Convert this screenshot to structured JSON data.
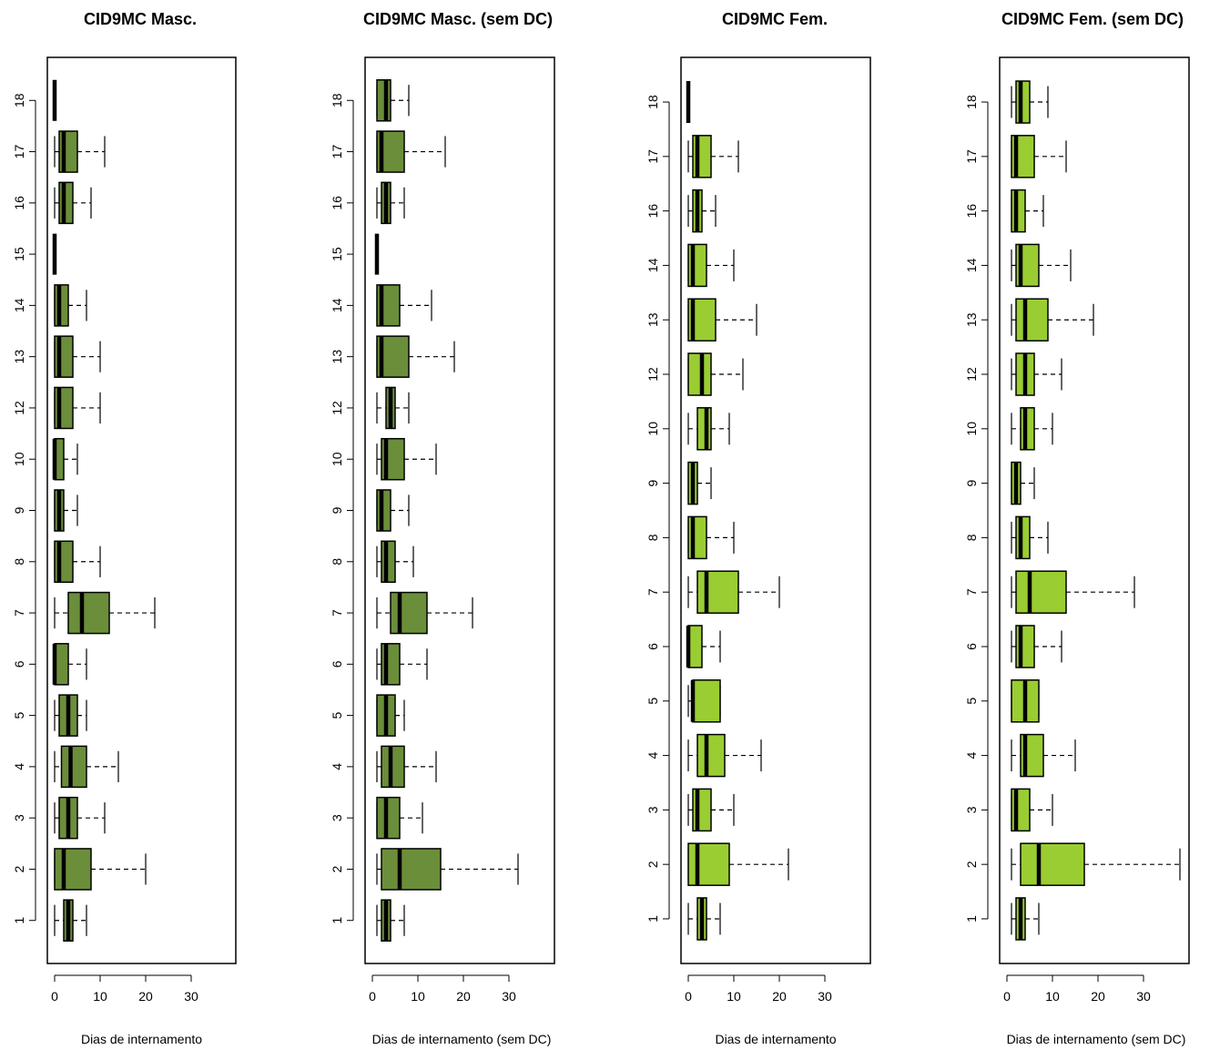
{
  "colors": {
    "male_fill": "#6b8e3a",
    "female_fill": "#9acd32",
    "stroke": "#000000"
  },
  "chart_data": [
    {
      "type": "boxplot",
      "orientation": "horizontal",
      "title": "CID9MC Masc.",
      "xlabel": "Dias de internamento",
      "ylabel": "",
      "xlim": [
        0,
        38
      ],
      "xticks": [
        "0",
        "10",
        "20",
        "30"
      ],
      "fill": "male_fill",
      "categories": [
        "1",
        "2",
        "3",
        "4",
        "5",
        "6",
        "7",
        "8",
        "9",
        "10",
        "12",
        "13",
        "14",
        "15",
        "16",
        "17",
        "18"
      ],
      "boxes": [
        {
          "category": "1",
          "min": 0,
          "q1": 2,
          "median": 3,
          "q3": 4,
          "max": 7
        },
        {
          "category": "2",
          "min": 0,
          "q1": 0,
          "median": 2,
          "q3": 8,
          "max": 20
        },
        {
          "category": "3",
          "min": 0,
          "q1": 1,
          "median": 3,
          "q3": 5,
          "max": 11
        },
        {
          "category": "4",
          "min": 0,
          "q1": 1.5,
          "median": 3.5,
          "q3": 7,
          "max": 14
        },
        {
          "category": "5",
          "min": 0,
          "q1": 1,
          "median": 3,
          "q3": 5,
          "max": 7
        },
        {
          "category": "6",
          "min": 0,
          "q1": 0,
          "median": 0,
          "q3": 3,
          "max": 7
        },
        {
          "category": "7",
          "min": 0,
          "q1": 3,
          "median": 6,
          "q3": 12,
          "max": 22
        },
        {
          "category": "8",
          "min": 0,
          "q1": 0,
          "median": 1,
          "q3": 4,
          "max": 10
        },
        {
          "category": "9",
          "min": 0,
          "q1": 0,
          "median": 1,
          "q3": 2,
          "max": 5
        },
        {
          "category": "10",
          "min": 0,
          "q1": 0,
          "median": 0,
          "q3": 2,
          "max": 5
        },
        {
          "category": "12",
          "min": 0,
          "q1": 0,
          "median": 1,
          "q3": 4,
          "max": 10
        },
        {
          "category": "13",
          "min": 0,
          "q1": 0,
          "median": 1,
          "q3": 4,
          "max": 10
        },
        {
          "category": "14",
          "min": 0,
          "q1": 0,
          "median": 1,
          "q3": 3,
          "max": 7
        },
        {
          "category": "15",
          "min": 0,
          "q1": 0,
          "median": 0,
          "q3": 0,
          "max": 0
        },
        {
          "category": "16",
          "min": 0,
          "q1": 1,
          "median": 2,
          "q3": 4,
          "max": 8
        },
        {
          "category": "17",
          "min": 0,
          "q1": 1,
          "median": 2,
          "q3": 5,
          "max": 11
        },
        {
          "category": "18",
          "min": 0,
          "q1": 0,
          "median": 0,
          "q3": 0,
          "max": 0
        }
      ]
    },
    {
      "type": "boxplot",
      "orientation": "horizontal",
      "title": "CID9MC Masc. (sem DC)",
      "xlabel": "Dias de internamento (sem DC)",
      "ylabel": "",
      "xlim": [
        0,
        38
      ],
      "xticks": [
        "0",
        "10",
        "20",
        "30"
      ],
      "fill": "male_fill",
      "categories": [
        "1",
        "2",
        "3",
        "4",
        "5",
        "6",
        "7",
        "8",
        "9",
        "10",
        "12",
        "13",
        "14",
        "15",
        "16",
        "17",
        "18"
      ],
      "boxes": [
        {
          "category": "1",
          "min": 1,
          "q1": 2,
          "median": 3,
          "q3": 4,
          "max": 7
        },
        {
          "category": "2",
          "min": 1,
          "q1": 2,
          "median": 6,
          "q3": 15,
          "max": 32
        },
        {
          "category": "3",
          "min": 1,
          "q1": 1,
          "median": 3,
          "q3": 6,
          "max": 11
        },
        {
          "category": "4",
          "min": 1,
          "q1": 2,
          "median": 4,
          "q3": 7,
          "max": 14
        },
        {
          "category": "5",
          "min": 1,
          "q1": 1,
          "median": 3,
          "q3": 5,
          "max": 7
        },
        {
          "category": "6",
          "min": 1,
          "q1": 2,
          "median": 3,
          "q3": 6,
          "max": 12
        },
        {
          "category": "7",
          "min": 1,
          "q1": 4,
          "median": 6,
          "q3": 12,
          "max": 22
        },
        {
          "category": "8",
          "min": 1,
          "q1": 2,
          "median": 3,
          "q3": 5,
          "max": 9
        },
        {
          "category": "9",
          "min": 1,
          "q1": 1,
          "median": 2,
          "q3": 4,
          "max": 8
        },
        {
          "category": "10",
          "min": 1,
          "q1": 2,
          "median": 3,
          "q3": 7,
          "max": 14
        },
        {
          "category": "12",
          "min": 1,
          "q1": 3,
          "median": 4,
          "q3": 5,
          "max": 8
        },
        {
          "category": "13",
          "min": 1,
          "q1": 1,
          "median": 2,
          "q3": 8,
          "max": 18
        },
        {
          "category": "14",
          "min": 1,
          "q1": 1,
          "median": 2,
          "q3": 6,
          "max": 13
        },
        {
          "category": "15",
          "min": 1,
          "q1": 1,
          "median": 1,
          "q3": 1,
          "max": 1
        },
        {
          "category": "16",
          "min": 1,
          "q1": 2,
          "median": 3,
          "q3": 4,
          "max": 7
        },
        {
          "category": "17",
          "min": 1,
          "q1": 1,
          "median": 2,
          "q3": 7,
          "max": 16
        },
        {
          "category": "18",
          "min": 1,
          "q1": 1,
          "median": 3,
          "q3": 4,
          "max": 8
        }
      ]
    },
    {
      "type": "boxplot",
      "orientation": "horizontal",
      "title": "CID9MC Fem.",
      "xlabel": "Dias de internamento",
      "ylabel": "",
      "xlim": [
        0,
        38
      ],
      "xticks": [
        "0",
        "10",
        "20",
        "30"
      ],
      "fill": "female_fill",
      "categories": [
        "1",
        "2",
        "3",
        "4",
        "5",
        "6",
        "7",
        "8",
        "9",
        "10",
        "12",
        "13",
        "14",
        "16",
        "17",
        "18"
      ],
      "boxes": [
        {
          "category": "1",
          "min": 0,
          "q1": 2,
          "median": 3,
          "q3": 4,
          "max": 7
        },
        {
          "category": "2",
          "min": 0,
          "q1": 0,
          "median": 2,
          "q3": 9,
          "max": 22
        },
        {
          "category": "3",
          "min": 0,
          "q1": 1,
          "median": 2,
          "q3": 5,
          "max": 10
        },
        {
          "category": "4",
          "min": 0,
          "q1": 2,
          "median": 4,
          "q3": 8,
          "max": 16
        },
        {
          "category": "5",
          "min": 0,
          "q1": 1,
          "median": 1,
          "q3": 7,
          "max": 7
        },
        {
          "category": "6",
          "min": 0,
          "q1": 0,
          "median": 0,
          "q3": 3,
          "max": 7
        },
        {
          "category": "7",
          "min": 0,
          "q1": 2,
          "median": 4,
          "q3": 11,
          "max": 20
        },
        {
          "category": "8",
          "min": 0,
          "q1": 0,
          "median": 1,
          "q3": 4,
          "max": 10
        },
        {
          "category": "9",
          "min": 0,
          "q1": 0,
          "median": 1,
          "q3": 2,
          "max": 5
        },
        {
          "category": "10",
          "min": 0,
          "q1": 2,
          "median": 4,
          "q3": 5,
          "max": 9
        },
        {
          "category": "12",
          "min": 0,
          "q1": 0,
          "median": 3,
          "q3": 5,
          "max": 12
        },
        {
          "category": "13",
          "min": 0,
          "q1": 0,
          "median": 1,
          "q3": 6,
          "max": 15
        },
        {
          "category": "14",
          "min": 0,
          "q1": 0,
          "median": 1,
          "q3": 4,
          "max": 10
        },
        {
          "category": "16",
          "min": 0,
          "q1": 1,
          "median": 2,
          "q3": 3,
          "max": 6
        },
        {
          "category": "17",
          "min": 0,
          "q1": 1,
          "median": 2,
          "q3": 5,
          "max": 11
        },
        {
          "category": "18",
          "min": 0,
          "q1": 0,
          "median": 0,
          "q3": 0,
          "max": 0
        }
      ]
    },
    {
      "type": "boxplot",
      "orientation": "horizontal",
      "title": "CID9MC Fem. (sem DC)",
      "xlabel": "Dias de internamento (sem DC)",
      "ylabel": "",
      "xlim": [
        0,
        38
      ],
      "xticks": [
        "0",
        "10",
        "20",
        "30"
      ],
      "fill": "female_fill",
      "categories": [
        "1",
        "2",
        "3",
        "4",
        "5",
        "6",
        "7",
        "8",
        "9",
        "10",
        "12",
        "13",
        "14",
        "16",
        "17",
        "18"
      ],
      "boxes": [
        {
          "category": "1",
          "min": 1,
          "q1": 2,
          "median": 3,
          "q3": 4,
          "max": 7
        },
        {
          "category": "2",
          "min": 1,
          "q1": 3,
          "median": 7,
          "q3": 17,
          "max": 38
        },
        {
          "category": "3",
          "min": 1,
          "q1": 1,
          "median": 2,
          "q3": 5,
          "max": 10
        },
        {
          "category": "4",
          "min": 1,
          "q1": 3,
          "median": 4,
          "q3": 8,
          "max": 15
        },
        {
          "category": "5",
          "min": 1,
          "q1": 1,
          "median": 4,
          "q3": 7,
          "max": 7
        },
        {
          "category": "6",
          "min": 1,
          "q1": 2,
          "median": 3,
          "q3": 6,
          "max": 12
        },
        {
          "category": "7",
          "min": 1,
          "q1": 2,
          "median": 5,
          "q3": 13,
          "max": 28
        },
        {
          "category": "8",
          "min": 1,
          "q1": 2,
          "median": 3,
          "q3": 5,
          "max": 9
        },
        {
          "category": "9",
          "min": 1,
          "q1": 1,
          "median": 2,
          "q3": 3,
          "max": 6
        },
        {
          "category": "10",
          "min": 1,
          "q1": 3,
          "median": 4,
          "q3": 6,
          "max": 10
        },
        {
          "category": "12",
          "min": 1,
          "q1": 2,
          "median": 4,
          "q3": 6,
          "max": 12
        },
        {
          "category": "13",
          "min": 1,
          "q1": 2,
          "median": 4,
          "q3": 9,
          "max": 19
        },
        {
          "category": "14",
          "min": 1,
          "q1": 2,
          "median": 3,
          "q3": 7,
          "max": 14
        },
        {
          "category": "16",
          "min": 1,
          "q1": 1,
          "median": 2,
          "q3": 4,
          "max": 8
        },
        {
          "category": "17",
          "min": 1,
          "q1": 1,
          "median": 2,
          "q3": 6,
          "max": 13
        },
        {
          "category": "18",
          "min": 1,
          "q1": 2,
          "median": 3,
          "q3": 5,
          "max": 9
        }
      ]
    }
  ]
}
